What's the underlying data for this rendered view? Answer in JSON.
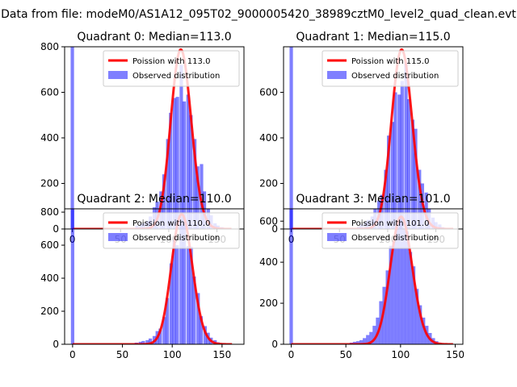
{
  "suptitle": "Data from file: modeM0/AS1A12_095T02_9000005420_38989cztM0_level2_quad_clean.evt",
  "colors": {
    "poisson_line": "#ff0000",
    "observed_bars": "#0000ff",
    "bar_alpha": 0.5,
    "line_alpha_overlap": 0.5
  },
  "chart_data": [
    {
      "type": "bar",
      "title": "Quadrant 0: Median=113.0",
      "xlabel": "",
      "ylabel": "",
      "xlim": [
        -8,
        178
      ],
      "ylim": [
        0,
        800
      ],
      "xticks": [
        0,
        50,
        100,
        150
      ],
      "yticks": [
        0,
        200,
        400,
        600,
        800
      ],
      "legend_position": "upper right",
      "series": [
        {
          "name": "Poission with 113.0",
          "kind": "line",
          "mean": 113.0,
          "peak": 787,
          "x_range": [
            0,
            165
          ]
        },
        {
          "name": "Observed distribution",
          "kind": "histogram",
          "bin_width": 3.5,
          "bins": [
            {
              "x": 0,
              "y": 880
            },
            {
              "x": 67,
              "y": 15
            },
            {
              "x": 71,
              "y": 20
            },
            {
              "x": 74,
              "y": 25
            },
            {
              "x": 78,
              "y": 35
            },
            {
              "x": 81,
              "y": 55
            },
            {
              "x": 85,
              "y": 95
            },
            {
              "x": 88,
              "y": 120
            },
            {
              "x": 92,
              "y": 165
            },
            {
              "x": 95,
              "y": 240
            },
            {
              "x": 99,
              "y": 395
            },
            {
              "x": 102,
              "y": 510
            },
            {
              "x": 106,
              "y": 575
            },
            {
              "x": 109,
              "y": 580
            },
            {
              "x": 113,
              "y": 720
            },
            {
              "x": 116,
              "y": 560
            },
            {
              "x": 120,
              "y": 590
            },
            {
              "x": 123,
              "y": 500
            },
            {
              "x": 127,
              "y": 395
            },
            {
              "x": 130,
              "y": 275
            },
            {
              "x": 134,
              "y": 285
            },
            {
              "x": 137,
              "y": 165
            },
            {
              "x": 141,
              "y": 90
            },
            {
              "x": 144,
              "y": 60
            },
            {
              "x": 148,
              "y": 25
            },
            {
              "x": 151,
              "y": 15
            },
            {
              "x": 155,
              "y": 8
            }
          ]
        }
      ]
    },
    {
      "type": "bar",
      "title": "Quadrant 1: Median=115.0",
      "xlabel": "",
      "ylabel": "",
      "xlim": [
        -8,
        178
      ],
      "ylim": [
        0,
        800
      ],
      "xticks": [
        0,
        50,
        100,
        150
      ],
      "yticks": [
        0,
        200,
        400,
        600
      ],
      "legend_position": "upper right",
      "series": [
        {
          "name": "Poission with 115.0",
          "kind": "line",
          "mean": 115.0,
          "peak": 787,
          "x_range": [
            0,
            168
          ]
        },
        {
          "name": "Observed distribution",
          "kind": "histogram",
          "bin_width": 3.5,
          "bins": [
            {
              "x": 0,
              "y": 880
            },
            {
              "x": 70,
              "y": 10
            },
            {
              "x": 73,
              "y": 20
            },
            {
              "x": 77,
              "y": 30
            },
            {
              "x": 80,
              "y": 40
            },
            {
              "x": 84,
              "y": 55
            },
            {
              "x": 87,
              "y": 90
            },
            {
              "x": 91,
              "y": 125
            },
            {
              "x": 94,
              "y": 150
            },
            {
              "x": 98,
              "y": 260
            },
            {
              "x": 101,
              "y": 410
            },
            {
              "x": 105,
              "y": 470
            },
            {
              "x": 108,
              "y": 600
            },
            {
              "x": 112,
              "y": 590
            },
            {
              "x": 115,
              "y": 650
            },
            {
              "x": 119,
              "y": 730
            },
            {
              "x": 122,
              "y": 570
            },
            {
              "x": 126,
              "y": 480
            },
            {
              "x": 129,
              "y": 440
            },
            {
              "x": 133,
              "y": 260
            },
            {
              "x": 136,
              "y": 200
            },
            {
              "x": 140,
              "y": 160
            },
            {
              "x": 143,
              "y": 90
            },
            {
              "x": 147,
              "y": 50
            },
            {
              "x": 150,
              "y": 30
            },
            {
              "x": 154,
              "y": 20
            },
            {
              "x": 157,
              "y": 8
            }
          ]
        }
      ]
    },
    {
      "type": "bar",
      "title": "Quadrant 2: Median=110.0",
      "xlabel": "",
      "ylabel": "",
      "xlim": [
        -8,
        172
      ],
      "ylim": [
        0,
        820
      ],
      "xticks": [
        0,
        50,
        100,
        150
      ],
      "yticks": [
        0,
        200,
        400,
        600,
        800
      ],
      "legend_position": "upper right",
      "series": [
        {
          "name": "Poission with 110.0",
          "kind": "line",
          "mean": 110.0,
          "peak": 787,
          "x_range": [
            0,
            160
          ]
        },
        {
          "name": "Observed distribution",
          "kind": "histogram",
          "bin_width": 3.4,
          "bins": [
            {
              "x": 0,
              "y": 880
            },
            {
              "x": 64,
              "y": 10
            },
            {
              "x": 68,
              "y": 15
            },
            {
              "x": 71,
              "y": 20
            },
            {
              "x": 75,
              "y": 25
            },
            {
              "x": 78,
              "y": 35
            },
            {
              "x": 82,
              "y": 50
            },
            {
              "x": 85,
              "y": 80
            },
            {
              "x": 88,
              "y": 95
            },
            {
              "x": 92,
              "y": 165
            },
            {
              "x": 95,
              "y": 280
            },
            {
              "x": 99,
              "y": 490
            },
            {
              "x": 102,
              "y": 630
            },
            {
              "x": 105,
              "y": 600
            },
            {
              "x": 109,
              "y": 720
            },
            {
              "x": 112,
              "y": 720
            },
            {
              "x": 116,
              "y": 595
            },
            {
              "x": 119,
              "y": 590
            },
            {
              "x": 122,
              "y": 410
            },
            {
              "x": 126,
              "y": 310
            },
            {
              "x": 129,
              "y": 170
            },
            {
              "x": 133,
              "y": 110
            },
            {
              "x": 136,
              "y": 70
            },
            {
              "x": 139,
              "y": 40
            },
            {
              "x": 143,
              "y": 25
            },
            {
              "x": 146,
              "y": 12
            },
            {
              "x": 150,
              "y": 6
            }
          ]
        }
      ]
    },
    {
      "type": "bar",
      "title": "Quadrant 3: Median=101.0",
      "xlabel": "",
      "ylabel": "",
      "xlim": [
        -7,
        157
      ],
      "ylim": [
        0,
        660
      ],
      "xticks": [
        0,
        50,
        100,
        150
      ],
      "yticks": [
        0,
        200,
        400,
        600
      ],
      "legend_position": "upper right",
      "series": [
        {
          "name": "Poission with 101.0",
          "kind": "line",
          "mean": 101.0,
          "peak": 621,
          "x_range": [
            0,
            148
          ]
        },
        {
          "name": "Observed distribution",
          "kind": "histogram",
          "bin_width": 3.1,
          "bins": [
            {
              "x": 0,
              "y": 700
            },
            {
              "x": 55,
              "y": 8
            },
            {
              "x": 58,
              "y": 12
            },
            {
              "x": 61,
              "y": 15
            },
            {
              "x": 64,
              "y": 20
            },
            {
              "x": 67,
              "y": 30
            },
            {
              "x": 70,
              "y": 45
            },
            {
              "x": 73,
              "y": 60
            },
            {
              "x": 76,
              "y": 90
            },
            {
              "x": 79,
              "y": 130
            },
            {
              "x": 82,
              "y": 210
            },
            {
              "x": 85,
              "y": 280
            },
            {
              "x": 88,
              "y": 360
            },
            {
              "x": 91,
              "y": 480
            },
            {
              "x": 94,
              "y": 500
            },
            {
              "x": 97,
              "y": 560
            },
            {
              "x": 100,
              "y": 625
            },
            {
              "x": 103,
              "y": 560
            },
            {
              "x": 106,
              "y": 550
            },
            {
              "x": 109,
              "y": 450
            },
            {
              "x": 112,
              "y": 380
            },
            {
              "x": 115,
              "y": 270
            },
            {
              "x": 118,
              "y": 190
            },
            {
              "x": 121,
              "y": 130
            },
            {
              "x": 124,
              "y": 90
            },
            {
              "x": 127,
              "y": 55
            },
            {
              "x": 130,
              "y": 30
            },
            {
              "x": 133,
              "y": 15
            },
            {
              "x": 136,
              "y": 8
            }
          ]
        }
      ]
    }
  ]
}
